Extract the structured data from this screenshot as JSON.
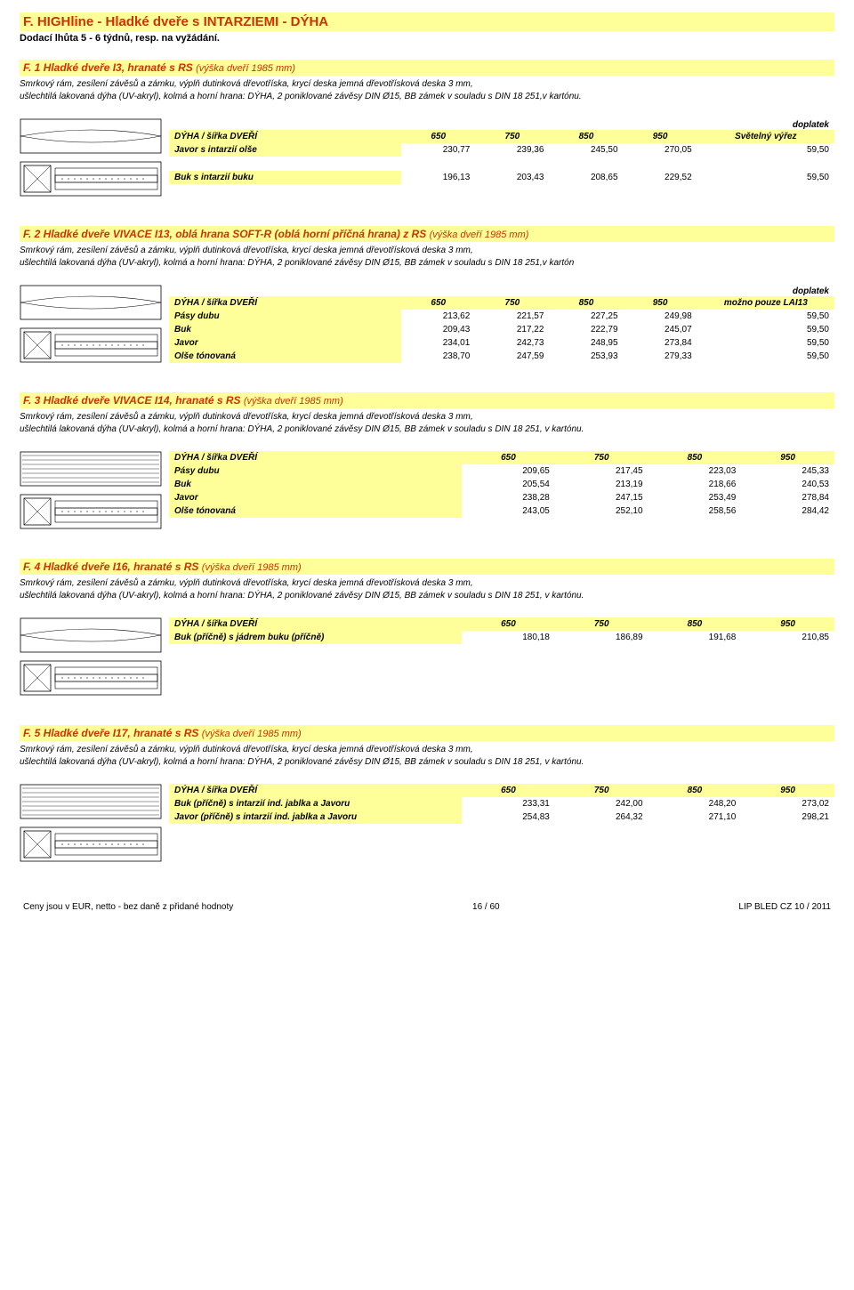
{
  "document": {
    "title": "F. HIGHline - Hladké dveře s INTARZIEMI - DÝHA",
    "subtitle": "Dodací lhůta 5 - 6 týdnů, resp. na vyžádání.",
    "colors": {
      "highlight_bg": "#ffff99",
      "accent_text": "#cc3300",
      "body_bg": "#ffffff"
    },
    "common": {
      "header_label": "DÝHA / šířka DVEŘÍ",
      "cols": [
        "650",
        "750",
        "850",
        "950"
      ],
      "doplatek": "doplatek"
    },
    "sections": [
      {
        "title_bold": "F. 1 Hladké dveře I3, hranaté s RS",
        "title_thin": "(výška dveří 1985 mm)",
        "desc": "Smrkový rám, zesílení závěsů a zámku, výplň dutinková dřevotříska, krycí deska jemná dřevotřísková deska 3 mm,\nušlechtilá lakovaná dýha (UV-akryl), kolmá a horní hrana: DÝHA, 2 poniklované závěsy DIN Ø15, BB zámek v souladu s DIN 18 251,v kartónu.",
        "has_doplatek": true,
        "doplatek_header": "Světelný výřez",
        "diagram": "door-diagram-1",
        "rows": [
          {
            "label": "Javor s intarzií olše",
            "v": [
              "230,77",
              "239,36",
              "245,50",
              "270,05",
              "59,50"
            ],
            "spaced": true
          },
          {
            "label": "Buk s intarzií buku",
            "v": [
              "196,13",
              "203,43",
              "208,65",
              "229,52",
              "59,50"
            ],
            "spaced": true
          }
        ]
      },
      {
        "title_bold": "F. 2 Hladké dveře VIVACE I13, oblá hrana SOFT-R (oblá horní příčná hrana) z RS",
        "title_thin": "(výška dveří 1985 mm)",
        "desc": "Smrkový rám, zesílení závěsů a zámku, výplň dutinková dřevotříska, krycí deska jemná dřevotřísková deska 3 mm,\nušlechtilá lakovaná dýha (UV-akryl), kolmá a horní hrana: DÝHA, 2 poniklované závěsy DIN Ø15, BB zámek v souladu s DIN 18 251,v kartón",
        "has_doplatek": true,
        "doplatek_header": "možno pouze LAI13",
        "diagram": "door-diagram-1",
        "rows": [
          {
            "label": "Pásy dubu",
            "v": [
              "213,62",
              "221,57",
              "227,25",
              "249,98",
              "59,50"
            ]
          },
          {
            "label": "Buk",
            "v": [
              "209,43",
              "217,22",
              "222,79",
              "245,07",
              "59,50"
            ]
          },
          {
            "label": "Javor",
            "v": [
              "234,01",
              "242,73",
              "248,95",
              "273,84",
              "59,50"
            ]
          },
          {
            "label": "Olše tónovaná",
            "v": [
              "238,70",
              "247,59",
              "253,93",
              "279,33",
              "59,50"
            ]
          }
        ]
      },
      {
        "title_bold": "F. 3 Hladké dveře VIVACE I14, hranaté s RS",
        "title_thin": "(výška dveří 1985 mm)",
        "desc": "Smrkový rám, zesílení závěsů a zámku, výplň dutinková dřevotříska, krycí deska jemná dřevotřísková deska 3 mm,\nušlechtilá lakovaná dýha (UV-akryl), kolmá a horní hrana: DÝHA, 2 poniklované závěsy DIN Ø15, BB zámek v souladu s DIN 18 251, v kartónu.",
        "has_doplatek": false,
        "diagram": "door-diagram-2",
        "rows": [
          {
            "label": "Pásy dubu",
            "v": [
              "209,65",
              "217,45",
              "223,03",
              "245,33"
            ]
          },
          {
            "label": "Buk",
            "v": [
              "205,54",
              "213,19",
              "218,66",
              "240,53"
            ]
          },
          {
            "label": "Javor",
            "v": [
              "238,28",
              "247,15",
              "253,49",
              "278,84"
            ]
          },
          {
            "label": "Olše tónovaná",
            "v": [
              "243,05",
              "252,10",
              "258,56",
              "284,42"
            ]
          }
        ]
      },
      {
        "title_bold": "F. 4 Hladké dveře I16, hranaté s RS",
        "title_thin": "(výška dveří 1985 mm)",
        "desc": "Smrkový rám, zesílení závěsů a zámku, výplň dutinková dřevotříska, krycí deska jemná dřevotřísková deska 3 mm,\nušlechtilá lakovaná dýha (UV-akryl), kolmá a horní hrana: DÝHA, 2 poniklované závěsy DIN Ø15, BB zámek v souladu s DIN 18 251, v kartónu.",
        "has_doplatek": false,
        "diagram": "door-diagram-1",
        "rows": [
          {
            "label": "Buk (příčně) s jádrem buku (příčně)",
            "v": [
              "180,18",
              "186,89",
              "191,68",
              "210,85"
            ]
          }
        ]
      },
      {
        "title_bold": "F. 5 Hladké dveře I17, hranaté s RS",
        "title_thin": "(výška dveří 1985 mm)",
        "desc": "Smrkový rám, zesílení závěsů a zámku, výplň dutinková dřevotříska, krycí deska jemná dřevotřísková deska 3 mm,\nušlechtilá lakovaná dýha (UV-akryl), kolmá a horní hrana: DÝHA, 2 poniklované závěsy DIN Ø15, BB zámek v souladu s DIN 18 251, v kartónu.",
        "has_doplatek": false,
        "diagram": "door-diagram-2",
        "rows": [
          {
            "label": "Buk (příčně) s intarzií ind. jablka a Javoru",
            "v": [
              "233,31",
              "242,00",
              "248,20",
              "273,02"
            ]
          },
          {
            "label": "Javor (příčně) s intarzií ind. jablka a Javoru",
            "v": [
              "254,83",
              "264,32",
              "271,10",
              "298,21"
            ]
          }
        ]
      }
    ],
    "footer": {
      "left": "Ceny jsou v EUR, netto - bez daně z přidané hodnoty",
      "center": "16 / 60",
      "right": "LIP BLED CZ 10 / 2011"
    }
  }
}
